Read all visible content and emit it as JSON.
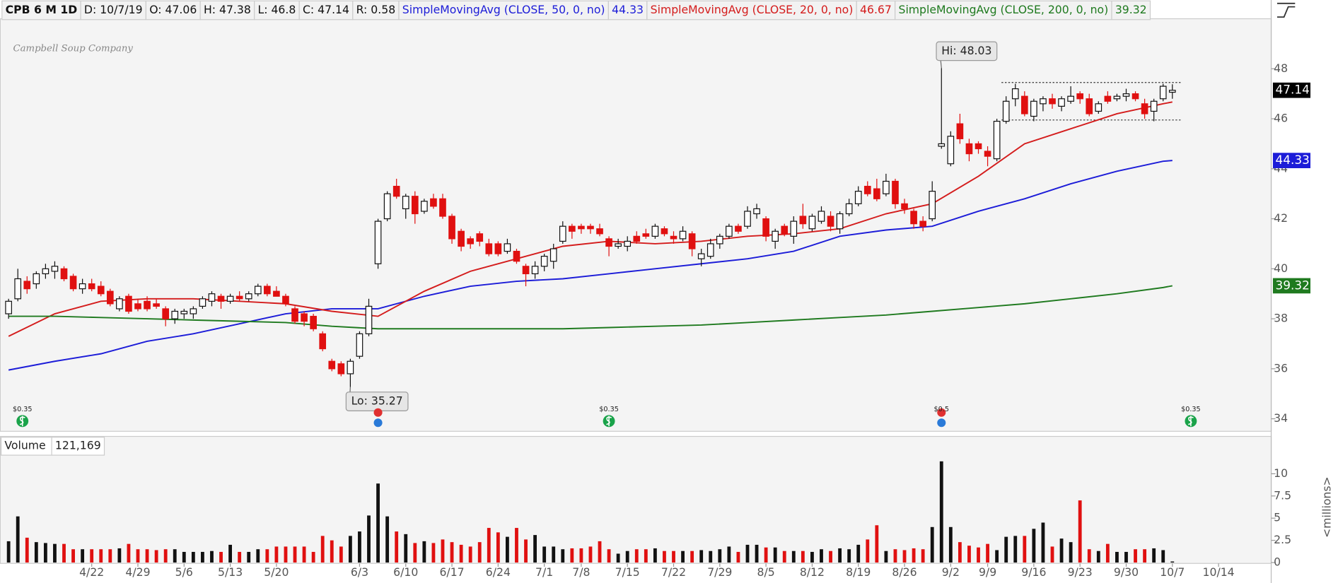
{
  "chart_data": {
    "type": "candlestick",
    "header": [
      "CPB 6 M 1D",
      "D: 10/7/19",
      "O: 47.06",
      "H: 47.38",
      "L: 46.8",
      "C: 47.14",
      "R: 0.58"
    ],
    "watermark": "Campbell Soup Company",
    "xlim": [
      -0.9,
      136.7
    ],
    "xticks": [
      {
        "value": 9,
        "label": "4/22"
      },
      {
        "value": 14,
        "label": "4/29"
      },
      {
        "value": 19,
        "label": "5/6"
      },
      {
        "value": 24,
        "label": "5/13"
      },
      {
        "value": 29,
        "label": "5/20"
      },
      {
        "value": 38,
        "label": "6/3"
      },
      {
        "value": 43,
        "label": "6/10"
      },
      {
        "value": 48,
        "label": "6/17"
      },
      {
        "value": 53,
        "label": "6/24"
      },
      {
        "value": 58,
        "label": "7/1"
      },
      {
        "value": 62,
        "label": "7/8"
      },
      {
        "value": 67,
        "label": "7/15"
      },
      {
        "value": 72,
        "label": "7/22"
      },
      {
        "value": 77,
        "label": "7/29"
      },
      {
        "value": 82,
        "label": "8/5"
      },
      {
        "value": 87,
        "label": "8/12"
      },
      {
        "value": 92,
        "label": "8/19"
      },
      {
        "value": 97,
        "label": "8/26"
      },
      {
        "value": 102,
        "label": "9/2"
      },
      {
        "value": 106,
        "label": "9/9"
      },
      {
        "value": 111,
        "label": "9/16"
      },
      {
        "value": 116,
        "label": "9/23"
      },
      {
        "value": 121,
        "label": "9/30"
      },
      {
        "value": 126,
        "label": "10/7"
      },
      {
        "value": 131,
        "label": "10/14"
      }
    ],
    "ylim": [
      33.5,
      50
    ],
    "yticks": [
      34,
      36,
      38,
      40,
      42,
      44,
      46,
      48
    ],
    "candles": {
      "up_color": "#ffffff",
      "down_color": "#e01010",
      "open": [
        38.2,
        38.8,
        39.5,
        39.4,
        39.8,
        39.9,
        40.0,
        39.7,
        39.2,
        39.4,
        39.3,
        39.1,
        38.4,
        38.9,
        38.6,
        38.7,
        38.6,
        38.4,
        38.0,
        38.2,
        38.2,
        38.5,
        38.7,
        38.9,
        38.7,
        38.9,
        38.8,
        39.0,
        39.3,
        39.1,
        38.9,
        38.4,
        38.2,
        38.1,
        37.4,
        36.3,
        36.2,
        35.8,
        36.5,
        37.4,
        40.2,
        42.0,
        43.3,
        42.4,
        42.9,
        42.3,
        42.8,
        42.8,
        42.1,
        41.5,
        41.2,
        41.4,
        41.0,
        41.0,
        40.7,
        40.7,
        40.1,
        39.8,
        40.1,
        40.3,
        41.1,
        41.7,
        41.7,
        41.7,
        41.6,
        41.2,
        40.9,
        40.9,
        41.3,
        41.4,
        41.3,
        41.6,
        41.3,
        41.2,
        41.4,
        40.4,
        40.5,
        41.0,
        41.3,
        41.7,
        41.7,
        42.2,
        42.0,
        41.1,
        41.7,
        41.3,
        42.1,
        41.6,
        41.9,
        42.1,
        41.6,
        42.2,
        42.6,
        43.3,
        43.2,
        43.0,
        43.5,
        42.6,
        42.3,
        41.9,
        42.0,
        44.9,
        44.2,
        45.8,
        45.0,
        45.0,
        44.7,
        44.4,
        45.9,
        46.8,
        46.9,
        46.1,
        46.6,
        46.8,
        46.5,
        46.7,
        47.0,
        46.8,
        46.3,
        46.9,
        46.8,
        46.9,
        47.0,
        46.6,
        46.3,
        46.8,
        47.06
      ],
      "high": [
        38.8,
        40.0,
        39.7,
        39.9,
        40.2,
        40.3,
        40.1,
        39.8,
        39.6,
        39.6,
        39.5,
        39.2,
        38.9,
        39.0,
        38.8,
        38.9,
        38.8,
        38.5,
        38.4,
        38.4,
        38.5,
        38.9,
        39.1,
        39.0,
        39.0,
        39.1,
        39.1,
        39.4,
        39.4,
        39.3,
        39.0,
        38.5,
        38.3,
        38.2,
        37.5,
        36.4,
        36.3,
        36.4,
        37.5,
        38.8,
        42.0,
        43.1,
        43.6,
        43.0,
        43.1,
        42.8,
        43.0,
        43.0,
        42.2,
        41.6,
        41.3,
        41.5,
        41.2,
        41.1,
        41.2,
        40.8,
        40.2,
        40.3,
        40.6,
        41.0,
        41.9,
        41.8,
        41.8,
        41.8,
        41.8,
        41.3,
        41.2,
        41.3,
        41.5,
        41.6,
        41.8,
        41.7,
        41.5,
        41.7,
        41.5,
        40.8,
        41.2,
        41.4,
        41.8,
        41.8,
        42.5,
        42.6,
        42.1,
        41.6,
        41.8,
        42.1,
        42.6,
        42.2,
        42.5,
        42.3,
        42.3,
        42.8,
        43.3,
        43.5,
        43.6,
        43.8,
        43.6,
        42.8,
        42.4,
        42.1,
        43.5,
        48.03,
        45.5,
        46.2,
        45.2,
        45.1,
        44.9,
        46.0,
        46.9,
        47.4,
        47.1,
        46.8,
        46.9,
        47.0,
        46.9,
        47.3,
        47.1,
        47.0,
        46.7,
        47.1,
        47.0,
        47.2,
        47.1,
        46.8,
        46.8,
        47.4,
        47.38
      ],
      "low": [
        38.0,
        38.7,
        39.0,
        39.2,
        39.6,
        39.6,
        39.5,
        39.1,
        39.0,
        39.1,
        38.9,
        38.5,
        38.3,
        38.2,
        38.3,
        38.3,
        38.4,
        37.7,
        37.8,
        38.0,
        38.0,
        38.4,
        38.5,
        38.4,
        38.6,
        38.7,
        38.7,
        38.9,
        38.9,
        38.9,
        38.5,
        37.8,
        37.7,
        37.5,
        36.7,
        35.9,
        35.7,
        35.27,
        36.4,
        37.3,
        40.0,
        41.9,
        42.8,
        42.0,
        41.8,
        42.2,
        42.4,
        42.0,
        41.0,
        40.7,
        40.8,
        40.9,
        40.5,
        40.5,
        40.6,
        40.2,
        39.3,
        39.6,
        39.9,
        40.0,
        41.0,
        41.2,
        41.4,
        41.4,
        41.3,
        40.5,
        40.8,
        40.7,
        41.0,
        41.2,
        41.2,
        41.3,
        41.0,
        41.1,
        40.5,
        40.1,
        40.4,
        40.8,
        41.2,
        41.4,
        41.6,
        42.0,
        41.1,
        40.8,
        41.3,
        41.0,
        41.6,
        41.5,
        41.8,
        41.5,
        41.4,
        42.1,
        42.5,
        42.9,
        42.7,
        42.9,
        42.4,
        42.2,
        41.6,
        41.5,
        41.9,
        44.8,
        44.1,
        45.0,
        44.3,
        44.6,
        44.1,
        44.3,
        45.8,
        46.5,
        46.1,
        45.9,
        46.3,
        46.4,
        46.3,
        46.6,
        46.6,
        46.1,
        46.2,
        46.6,
        46.7,
        46.7,
        46.7,
        46.0,
        45.9,
        46.7,
        46.8
      ],
      "close": [
        38.7,
        39.6,
        39.2,
        39.8,
        40.0,
        40.1,
        39.6,
        39.2,
        39.4,
        39.2,
        39.0,
        38.6,
        38.8,
        38.3,
        38.4,
        38.4,
        38.5,
        38.0,
        38.3,
        38.3,
        38.4,
        38.8,
        39.0,
        38.7,
        38.9,
        38.8,
        39.0,
        39.3,
        39.0,
        38.9,
        38.6,
        37.9,
        37.9,
        37.6,
        36.8,
        36.0,
        35.8,
        36.3,
        37.4,
        38.5,
        41.9,
        43.0,
        42.9,
        42.9,
        42.2,
        42.7,
        42.5,
        42.1,
        41.2,
        40.9,
        41.0,
        41.1,
        40.6,
        40.6,
        41.0,
        40.3,
        39.8,
        40.1,
        40.5,
        40.8,
        41.7,
        41.5,
        41.6,
        41.6,
        41.4,
        40.9,
        41.0,
        41.1,
        41.1,
        41.3,
        41.7,
        41.4,
        41.2,
        41.5,
        40.8,
        40.6,
        41.0,
        41.3,
        41.7,
        41.5,
        42.3,
        42.4,
        41.3,
        41.5,
        41.4,
        41.9,
        41.8,
        42.1,
        42.3,
        41.7,
        42.2,
        42.6,
        43.1,
        43.0,
        42.8,
        43.5,
        42.6,
        42.4,
        41.8,
        41.7,
        43.1,
        45.0,
        45.3,
        45.2,
        44.6,
        44.8,
        44.5,
        45.9,
        46.7,
        47.2,
        46.2,
        46.7,
        46.8,
        46.6,
        46.8,
        46.9,
        46.8,
        46.2,
        46.6,
        46.7,
        46.9,
        47.0,
        46.8,
        46.2,
        46.7,
        47.3,
        47.14
      ]
    },
    "series": [
      {
        "name": "SimpleMovingAvg (CLOSE, 50, 0, no)",
        "color": "#1c1cd8",
        "last": 44.33,
        "x": [
          0,
          5,
          10,
          15,
          20,
          25,
          30,
          35,
          40,
          45,
          50,
          55,
          60,
          65,
          70,
          75,
          80,
          85,
          90,
          95,
          100,
          105,
          110,
          115,
          120,
          125,
          126
        ],
        "values": [
          35.95,
          36.3,
          36.6,
          37.1,
          37.4,
          37.8,
          38.2,
          38.4,
          38.4,
          38.9,
          39.3,
          39.5,
          39.6,
          39.8,
          40.0,
          40.2,
          40.4,
          40.7,
          41.3,
          41.55,
          41.7,
          42.3,
          42.8,
          43.4,
          43.9,
          44.3,
          44.33
        ]
      },
      {
        "name": "SimpleMovingAvg (CLOSE, 20, 0, no)",
        "color": "#d41c1c",
        "last": 46.67,
        "x": [
          0,
          5,
          10,
          15,
          20,
          25,
          30,
          35,
          40,
          45,
          50,
          55,
          60,
          65,
          70,
          75,
          80,
          85,
          90,
          95,
          100,
          105,
          110,
          115,
          120,
          125,
          126
        ],
        "values": [
          37.3,
          38.2,
          38.7,
          38.8,
          38.8,
          38.7,
          38.6,
          38.3,
          38.1,
          39.1,
          39.9,
          40.4,
          40.9,
          41.1,
          41.0,
          41.1,
          41.3,
          41.4,
          41.6,
          42.2,
          42.6,
          43.7,
          45.0,
          45.6,
          46.2,
          46.6,
          46.67
        ]
      },
      {
        "name": "SimpleMovingAvg (CLOSE, 200, 0, no)",
        "color": "#1f7a1f",
        "last": 39.32,
        "x": [
          0,
          5,
          10,
          15,
          20,
          25,
          30,
          35,
          40,
          45,
          50,
          55,
          60,
          65,
          70,
          75,
          80,
          85,
          90,
          95,
          100,
          105,
          110,
          115,
          120,
          125,
          126
        ],
        "values": [
          38.1,
          38.1,
          38.05,
          38.0,
          37.95,
          37.9,
          37.85,
          37.7,
          37.6,
          37.6,
          37.6,
          37.6,
          37.6,
          37.65,
          37.7,
          37.75,
          37.85,
          37.95,
          38.05,
          38.15,
          38.3,
          38.45,
          38.6,
          38.8,
          39.0,
          39.25,
          39.32
        ]
      }
    ],
    "annotations": {
      "high": "Hi: 48.03",
      "low": "Lo: 35.27"
    },
    "range_box": {
      "x": [
        107.5,
        127
      ],
      "values": [
        47.45,
        45.95
      ]
    },
    "dividends": [
      {
        "x": 1.5,
        "label": "$0.35"
      },
      {
        "x": 65,
        "label": "$0.35"
      },
      {
        "x": 101,
        "label": "$0.5"
      },
      {
        "x": 128,
        "label": "$0.35"
      }
    ],
    "earnings": [
      {
        "x": 40
      },
      {
        "x": 101
      }
    ],
    "volume": {
      "title": "Volume",
      "last_label": "121,169",
      "axis_label": "<millions>",
      "ylim": [
        0,
        12
      ],
      "yticks": [
        0,
        2.5,
        5,
        7.5,
        10
      ],
      "values": [
        2.4,
        5.2,
        2.8,
        2.3,
        2.2,
        2.1,
        2.1,
        1.5,
        1.5,
        1.5,
        1.5,
        1.5,
        1.6,
        2.1,
        1.5,
        1.5,
        1.4,
        1.5,
        1.5,
        1.2,
        1.2,
        1.2,
        1.3,
        1.2,
        2.0,
        1.2,
        1.2,
        1.5,
        1.5,
        1.8,
        1.8,
        1.8,
        1.8,
        1.2,
        3.0,
        2.5,
        1.8,
        3.0,
        3.5,
        5.3,
        8.9,
        5.2,
        3.5,
        3.2,
        2.2,
        2.4,
        2.2,
        2.6,
        2.3,
        2.0,
        1.8,
        2.3,
        3.9,
        3.4,
        2.9,
        3.9,
        2.6,
        3.1,
        1.8,
        1.8,
        1.5,
        1.6,
        1.6,
        1.8,
        2.4,
        1.5,
        1.0,
        1.3,
        1.5,
        1.5,
        1.6,
        1.3,
        1.3,
        1.3,
        1.3,
        1.4,
        1.3,
        1.5,
        1.8,
        1.2,
        2.0,
        2.0,
        1.7,
        1.7,
        1.3,
        1.3,
        1.3,
        1.2,
        1.5,
        1.3,
        1.6,
        1.5,
        2.0,
        2.6,
        4.2,
        1.3,
        1.5,
        1.4,
        1.6,
        1.5,
        4.0,
        11.4,
        4.0,
        2.3,
        1.9,
        1.7,
        2.1,
        1.4,
        2.9,
        3.0,
        3.0,
        3.8,
        4.5,
        1.8,
        2.7,
        2.3,
        7.0,
        1.5,
        1.3,
        2.1,
        1.2,
        1.2,
        1.5,
        1.5,
        1.6,
        1.4,
        0.121169
      ]
    }
  }
}
